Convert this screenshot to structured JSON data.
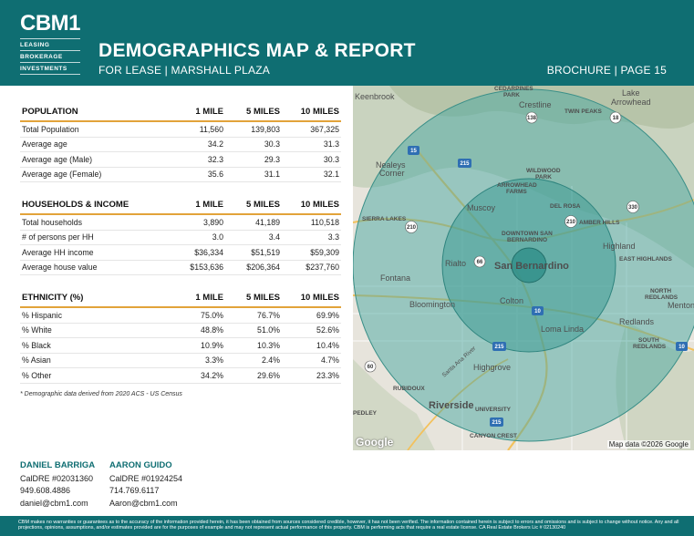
{
  "header": {
    "logo": "CBM1",
    "logo_lines": [
      "LEASING",
      "BROKERAGE",
      "INVESTMENTS"
    ],
    "title": "DEMOGRAPHICS MAP & REPORT",
    "subtitle": "FOR LEASE | MARSHALL PLAZA",
    "page": "BROCHURE | PAGE 15"
  },
  "columns": [
    "1 MILE",
    "5 MILES",
    "10 MILES"
  ],
  "population": {
    "heading": "POPULATION",
    "rows": [
      {
        "label": "Total Population",
        "v1": "11,560",
        "v2": "139,803",
        "v3": "367,325"
      },
      {
        "label": "Average age",
        "v1": "34.2",
        "v2": "30.3",
        "v3": "31.3"
      },
      {
        "label": "Average age (Male)",
        "v1": "32.3",
        "v2": "29.3",
        "v3": "30.3"
      },
      {
        "label": "Average age (Female)",
        "v1": "35.6",
        "v2": "31.1",
        "v3": "32.1"
      }
    ]
  },
  "households": {
    "heading": "HOUSEHOLDS & INCOME",
    "rows": [
      {
        "label": "Total households",
        "v1": "3,890",
        "v2": "41,189",
        "v3": "110,518"
      },
      {
        "label": "# of persons per HH",
        "v1": "3.0",
        "v2": "3.4",
        "v3": "3.3"
      },
      {
        "label": "Average HH income",
        "v1": "$36,334",
        "v2": "$51,519",
        "v3": "$59,309"
      },
      {
        "label": "Average house value",
        "v1": "$153,636",
        "v2": "$206,364",
        "v3": "$237,760"
      }
    ]
  },
  "ethnicity": {
    "heading": "ETHNICITY (%)",
    "rows": [
      {
        "label": "% Hispanic",
        "v1": "75.0%",
        "v2": "76.7%",
        "v3": "69.9%"
      },
      {
        "label": "% White",
        "v1": "48.8%",
        "v2": "51.0%",
        "v3": "52.6%"
      },
      {
        "label": "% Black",
        "v1": "10.9%",
        "v2": "10.3%",
        "v3": "10.4%"
      },
      {
        "label": "% Asian",
        "v1": "3.3%",
        "v2": "2.4%",
        "v3": "4.7%"
      },
      {
        "label": "% Other",
        "v1": "34.2%",
        "v2": "29.6%",
        "v3": "23.3%"
      }
    ]
  },
  "footnote": "* Demographic data derived from 2020 ACS - US Census",
  "map": {
    "labels": {
      "keenbrook": "Keenbrook",
      "cedarpines": "CEDARPINES",
      "park": "PARK",
      "crestline": "Crestline",
      "lake": "Lake",
      "arrowhead": "Arrowhead",
      "twinpeaks": "TWIN PEAKS",
      "nealeys": "Nealeys",
      "corner": "Corner",
      "wildwood": "WILDWOOD",
      "wildwood_park": "PARK",
      "arrowhead2": "ARROWHEAD",
      "farms": "FARMS",
      "sierralakes": "SIERRA LAKES",
      "muscoy": "Muscoy",
      "delrosa": "DEL ROSA",
      "amberhills": "AMBER HILLS",
      "downtown1": "DOWNTOWN SAN",
      "downtown2": "BERNARDINO",
      "highland": "Highland",
      "easthighlands": "EAST HIGHLANDS",
      "rialto": "Rialto",
      "sanbernardino": "San Bernardino",
      "fontana": "Fontana",
      "northredlands1": "NORTH",
      "northredlands2": "REDLANDS",
      "bloomington": "Bloomington",
      "colton": "Colton",
      "mentone": "Mentone",
      "lomalinda": "Loma Linda",
      "redlands": "Redlands",
      "southredlands1": "SOUTH",
      "southredlands2": "REDLANDS",
      "santaana": "Santa Ana River",
      "highgrove": "Highgrove",
      "rubidoux": "RUBIDOUX",
      "riverside": "Riverside",
      "university": "UNIVERSITY",
      "pedley": "PEDLEY",
      "canyoncrest": "CANYON CREST"
    },
    "shields": [
      "138",
      "18",
      "15",
      "215",
      "330",
      "210",
      "210",
      "66",
      "10",
      "215",
      "10",
      "60",
      "215"
    ],
    "google": "Google",
    "attribution": "Map data ©2026 Google"
  },
  "contacts": [
    {
      "name": "DANIEL BARRIGA",
      "license": "CalDRE #02031360",
      "phone": "949.608.4886",
      "email": "daniel@cbm1.com"
    },
    {
      "name": "AARON GUIDO",
      "license": "CalDRE #01924254",
      "phone": "714.769.6117",
      "email": "Aaron@cbm1.com"
    }
  ],
  "disclaimer": "CBM makes no warranties or guarantees as to the accuracy of the information provided herein, it has been obtained from sources considered credible, however, it has not been verified. The information contained herein is subject to errors and omissions and is subject to change without notice. Any and all projections, opinions, assumptions, and/or estimates provided are for the purposes of example and may not represent actual performance of this property. CBM is performing acts that require a real estate license. CA Real Estate Brokers Lic # 02130240",
  "colors": {
    "brand_teal": "#0f6e72",
    "accent_gold": "#e2a33a",
    "radius_fill": "#4aa8a1"
  }
}
